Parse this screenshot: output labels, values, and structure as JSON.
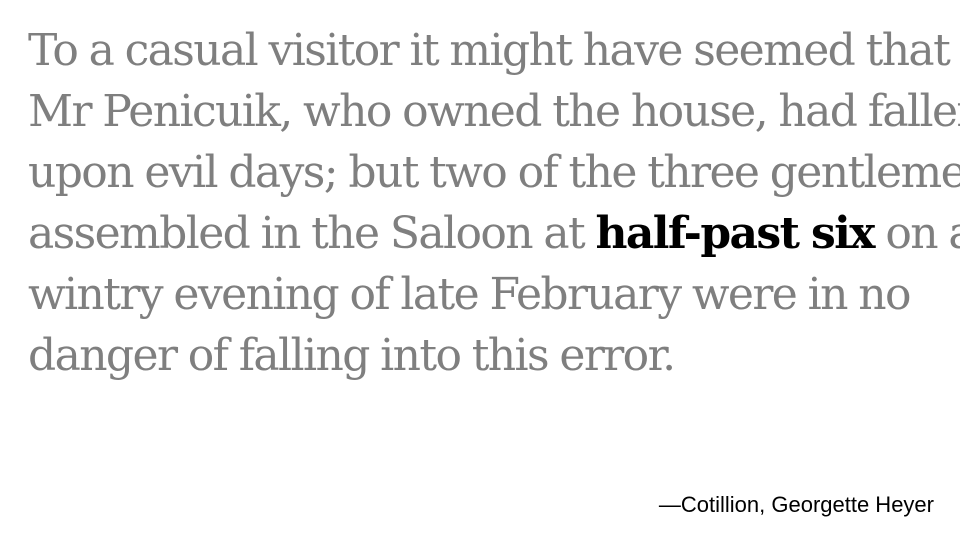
{
  "quote": {
    "line1": "To a casual visitor it might have seemed that",
    "line2": "Mr Penicuik, who owned the house, had fallen",
    "line3": "upon evil days; but two of the three gentlemen",
    "line4_before": "assembled in the Saloon at ",
    "line4_highlight": "half-past six",
    "line4_after": " on a",
    "line5": "wintry evening of late February were in no",
    "line6": "danger of falling into this error."
  },
  "attribution": "—Cotillion, Georgette Heyer",
  "colors": {
    "body_text": "#7f7f7f",
    "highlight_text": "#000000",
    "background": "#ffffff"
  }
}
